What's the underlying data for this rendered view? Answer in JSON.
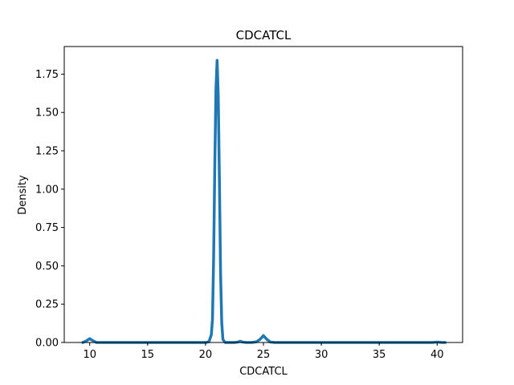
{
  "chart_data": {
    "type": "line",
    "title": "CDCATCL",
    "xlabel": "CDCATCL",
    "ylabel": "Density",
    "xlim": [
      7.8,
      42.2
    ],
    "ylim": [
      0.0,
      1.93
    ],
    "xticks": [
      10,
      15,
      20,
      25,
      30,
      35,
      40
    ],
    "xtick_labels": [
      "10",
      "15",
      "20",
      "25",
      "30",
      "35",
      "40"
    ],
    "yticks": [
      0.0,
      0.25,
      0.5,
      0.75,
      1.0,
      1.25,
      1.5,
      1.75
    ],
    "ytick_labels": [
      "0.00",
      "0.25",
      "0.50",
      "0.75",
      "1.00",
      "1.25",
      "1.50",
      "1.75"
    ],
    "grid": false,
    "legend": "none",
    "series": [
      {
        "color": "#1f77b4",
        "x": [
          9.4,
          9.7,
          10.0,
          10.3,
          10.6,
          11.0,
          12.0,
          14.0,
          16.0,
          18.0,
          19.5,
          20.0,
          20.3,
          20.5,
          20.6,
          20.7,
          20.8,
          20.9,
          21.0,
          21.1,
          21.2,
          21.3,
          21.4,
          21.5,
          21.7,
          22.0,
          22.5,
          22.8,
          23.0,
          23.2,
          23.5,
          24.0,
          24.4,
          24.7,
          25.0,
          25.3,
          25.6,
          26.0,
          28.0,
          30.0,
          32.0,
          35.0,
          38.0,
          39.6,
          40.0,
          40.4,
          40.7
        ],
        "y": [
          0.0,
          0.01,
          0.025,
          0.01,
          0.0,
          0.0,
          0.0,
          0.0,
          0.0,
          0.0,
          0.0,
          0.0,
          0.005,
          0.05,
          0.15,
          0.55,
          1.15,
          1.65,
          1.84,
          1.6,
          1.05,
          0.45,
          0.13,
          0.02,
          0.0,
          0.0,
          0.0,
          0.003,
          0.008,
          0.003,
          0.0,
          0.0,
          0.005,
          0.02,
          0.045,
          0.02,
          0.003,
          0.0,
          0.0,
          0.0,
          0.0,
          0.0,
          0.0,
          0.0,
          0.003,
          0.0,
          0.0
        ]
      }
    ]
  }
}
